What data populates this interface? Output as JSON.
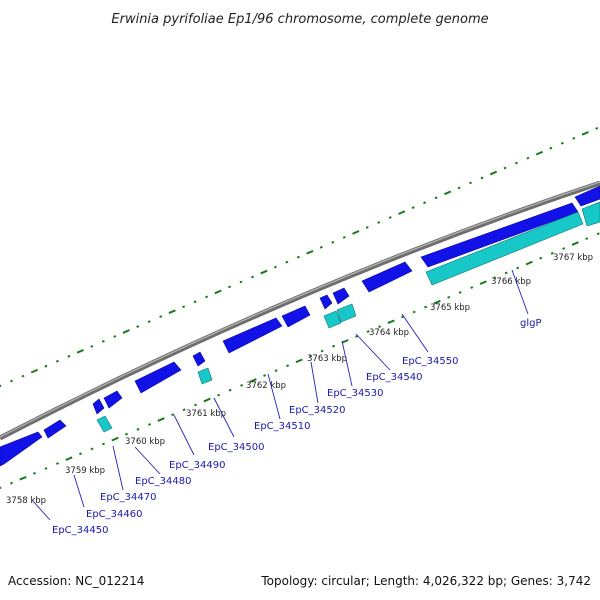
{
  "title": "Erwinia pyrifoliae Ep1/96 chromosome, complete genome",
  "footer": {
    "accession": "Accession: NC_012214",
    "summary": "Topology: circular; Length: 4,026,322 bp; Genes: 3,742"
  },
  "colors": {
    "backbone": "#808080",
    "cds": "#1010e0",
    "rna": "#18c8c8",
    "gc_ticks": "#1a7a1a",
    "label_text": "#1a1aa8",
    "leader": "#2020c0"
  },
  "scale": {
    "unit": "kbp",
    "ticks": [
      "3758 kbp",
      "3759 kbp",
      "3760 kbp",
      "3761 kbp",
      "3762 kbp",
      "3763 kbp",
      "3764 kbp",
      "3765 kbp",
      "3766 kbp",
      "3767 kbp"
    ]
  },
  "genes": [
    {
      "label": "EpC_34450"
    },
    {
      "label": "EpC_34460"
    },
    {
      "label": "EpC_34470"
    },
    {
      "label": "EpC_34480"
    },
    {
      "label": "EpC_34490"
    },
    {
      "label": "EpC_34500"
    },
    {
      "label": "EpC_34510"
    },
    {
      "label": "EpC_34520"
    },
    {
      "label": "EpC_34530"
    },
    {
      "label": "EpC_34540"
    },
    {
      "label": "EpC_34550"
    },
    {
      "label": "glgP"
    }
  ]
}
